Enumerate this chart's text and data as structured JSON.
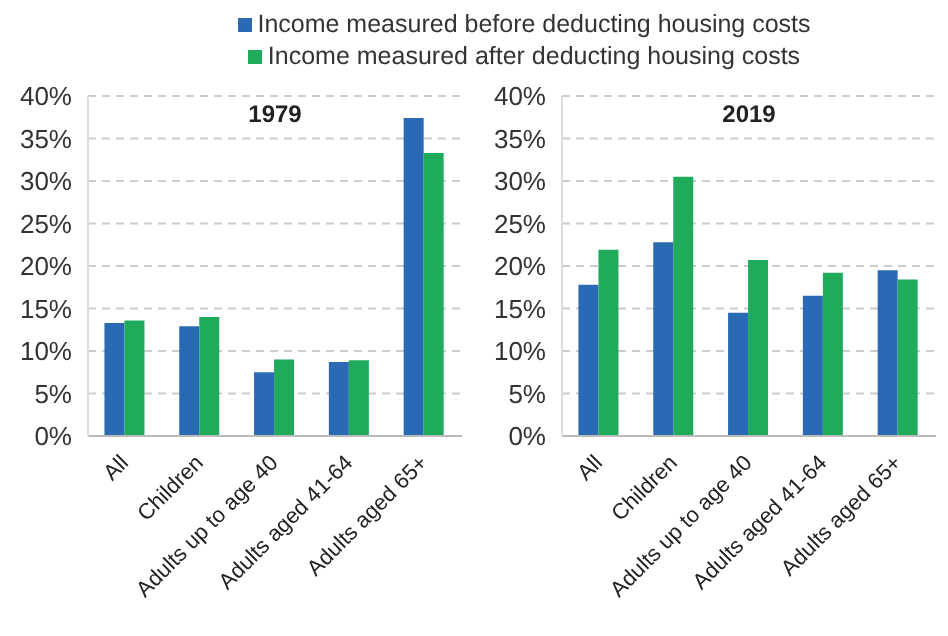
{
  "chart_data": [
    {
      "type": "bar",
      "title": "1979",
      "categories": [
        "All",
        "Children",
        "Adults up to age 40",
        "Adults aged 41-64",
        "Adults aged 65+"
      ],
      "series": [
        {
          "name": "Income measured before deducting housing costs",
          "color": "#2a6ab4",
          "values": [
            13.3,
            12.9,
            7.5,
            8.7,
            37.4
          ]
        },
        {
          "name": "Income measured after deducting housing costs",
          "color": "#1faa5c",
          "values": [
            13.6,
            14.0,
            9.0,
            8.9,
            33.3
          ]
        }
      ],
      "ylim": [
        0,
        40
      ],
      "yticks": [
        {
          "value": 0,
          "label": "0%"
        },
        {
          "value": 5,
          "label": "5%"
        },
        {
          "value": 10,
          "label": "10%"
        },
        {
          "value": 15,
          "label": "15%"
        },
        {
          "value": 20,
          "label": "20%"
        },
        {
          "value": 25,
          "label": "25%"
        },
        {
          "value": 30,
          "label": "30%"
        },
        {
          "value": 35,
          "label": "35%"
        },
        {
          "value": 40,
          "label": "40%"
        }
      ],
      "grid": "y",
      "legend": "top"
    },
    {
      "type": "bar",
      "title": "2019",
      "categories": [
        "All",
        "Children",
        "Adults up to age 40",
        "Adults aged 41-64",
        "Adults aged 65+"
      ],
      "series": [
        {
          "color": "#2a6ab4",
          "values": [
            17.8,
            22.8,
            14.5,
            16.5,
            19.5
          ]
        },
        {
          "color": "#1faa5c",
          "values": [
            21.9,
            30.5,
            20.7,
            19.2,
            18.4
          ]
        }
      ],
      "ylim": [
        0,
        40
      ],
      "yticks": [
        {
          "value": 0,
          "label": "0%"
        },
        {
          "value": 5,
          "label": "5%"
        },
        {
          "value": 10,
          "label": "10%"
        },
        {
          "value": 15,
          "label": "15%"
        },
        {
          "value": 20,
          "label": "20%"
        },
        {
          "value": 25,
          "label": "25%"
        },
        {
          "value": 30,
          "label": "30%"
        },
        {
          "value": 35,
          "label": "35%"
        },
        {
          "value": 40,
          "label": "40%"
        }
      ],
      "grid": "y"
    }
  ]
}
